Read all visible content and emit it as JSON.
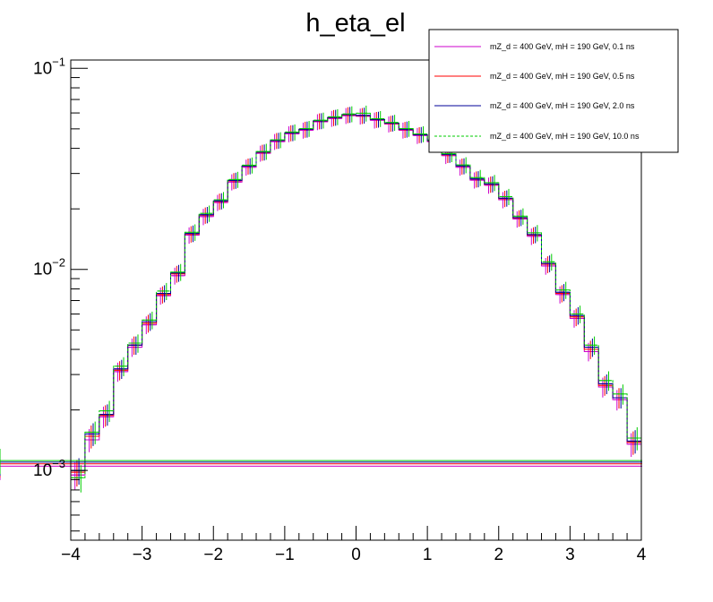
{
  "chart_data": {
    "type": "line",
    "title": "h_eta_el",
    "xlabel": "",
    "ylabel": "",
    "xlim": [
      -4,
      4
    ],
    "ylim": [
      0.00045,
      0.11
    ],
    "yscale": "log",
    "grid": false,
    "legend_position": "top-right",
    "x_ticks": [
      {
        "value": -4,
        "label": "−4"
      },
      {
        "value": -3,
        "label": "−3"
      },
      {
        "value": -2,
        "label": "−2"
      },
      {
        "value": -1,
        "label": "−1"
      },
      {
        "value": 0,
        "label": "0"
      },
      {
        "value": 1,
        "label": "1"
      },
      {
        "value": 2,
        "label": "2"
      },
      {
        "value": 3,
        "label": "3"
      },
      {
        "value": 4,
        "label": "4"
      }
    ],
    "y_ticks": [
      {
        "value": 0.001,
        "base": "10",
        "exp": "−3"
      },
      {
        "value": 0.01,
        "base": "10",
        "exp": "−2"
      },
      {
        "value": 0.1,
        "base": "10",
        "exp": "−1"
      }
    ],
    "bin_edges": [
      -4.0,
      -3.8,
      -3.6,
      -3.4,
      -3.2,
      -3.0,
      -2.8,
      -2.6,
      -2.4,
      -2.2,
      -2.0,
      -1.8,
      -1.6,
      -1.4,
      -1.2,
      -1.0,
      -0.8,
      -0.6,
      -0.4,
      -0.2,
      0.0,
      0.2,
      0.4,
      0.6,
      0.8,
      1.0,
      1.2,
      1.4,
      1.6,
      1.8,
      2.0,
      2.2,
      2.4,
      2.6,
      2.8,
      3.0,
      3.2,
      3.4,
      3.6,
      3.8,
      4.0
    ],
    "series": [
      {
        "name": "mZ_d = 400 GeV, mH = 190 GeV, 0.1 ns",
        "color": "#cc00cc",
        "dashed": false,
        "values": [
          0.00095,
          0.00142,
          0.00185,
          0.0031,
          0.0041,
          0.0053,
          0.0074,
          0.0093,
          0.0148,
          0.0183,
          0.0215,
          0.0272,
          0.0322,
          0.0378,
          0.0432,
          0.0472,
          0.0492,
          0.0542,
          0.0563,
          0.0582,
          0.0578,
          0.0552,
          0.0528,
          0.0492,
          0.0463,
          0.0432,
          0.0368,
          0.0322,
          0.0278,
          0.0262,
          0.0222,
          0.0178,
          0.0146,
          0.0104,
          0.0075,
          0.0057,
          0.0039,
          0.0026,
          0.00225,
          0.00135,
          0.00105
        ]
      },
      {
        "name": "mZ_d = 400 GeV, mH = 190 GeV, 0.5 ns",
        "color": "#ff0000",
        "dashed": false,
        "values": [
          0.00098,
          0.00148,
          0.00188,
          0.00315,
          0.0042,
          0.0054,
          0.0075,
          0.0095,
          0.015,
          0.0186,
          0.0218,
          0.0276,
          0.0326,
          0.0382,
          0.0437,
          0.0477,
          0.0497,
          0.0547,
          0.0568,
          0.0587,
          0.0582,
          0.0556,
          0.0532,
          0.0496,
          0.0467,
          0.0436,
          0.0372,
          0.0326,
          0.0281,
          0.0265,
          0.0225,
          0.018,
          0.0148,
          0.0106,
          0.0076,
          0.0058,
          0.004,
          0.00265,
          0.0023,
          0.00138,
          0.00108
        ]
      },
      {
        "name": "mZ_d = 400 GeV, mH = 190 GeV, 2.0 ns",
        "color": "#000099",
        "dashed": false,
        "values": [
          0.001,
          0.00152,
          0.0019,
          0.0032,
          0.0042,
          0.0055,
          0.0076,
          0.0096,
          0.0151,
          0.0187,
          0.0219,
          0.0277,
          0.0327,
          0.0383,
          0.0438,
          0.0478,
          0.0498,
          0.0548,
          0.057,
          0.0589,
          0.0584,
          0.0558,
          0.0534,
          0.0498,
          0.0468,
          0.0437,
          0.0373,
          0.0327,
          0.0282,
          0.0266,
          0.0226,
          0.0181,
          0.0149,
          0.0107,
          0.0077,
          0.0059,
          0.0041,
          0.0027,
          0.0023,
          0.0014,
          0.0011
        ]
      },
      {
        "name": "mZ_d = 400 GeV, mH = 190 GeV, 10.0 ns",
        "color": "#00cc00",
        "dashed": true,
        "values": [
          0.00092,
          0.00155,
          0.00198,
          0.0033,
          0.0043,
          0.0056,
          0.0078,
          0.0097,
          0.0153,
          0.019,
          0.0222,
          0.028,
          0.033,
          0.0386,
          0.0441,
          0.0482,
          0.0502,
          0.0552,
          0.0574,
          0.0593,
          0.0598,
          0.0562,
          0.0538,
          0.0502,
          0.0472,
          0.044,
          0.0376,
          0.0331,
          0.0286,
          0.027,
          0.023,
          0.0184,
          0.0152,
          0.0109,
          0.0079,
          0.006,
          0.0042,
          0.0028,
          0.0024,
          0.00145,
          0.00112
        ]
      }
    ]
  }
}
